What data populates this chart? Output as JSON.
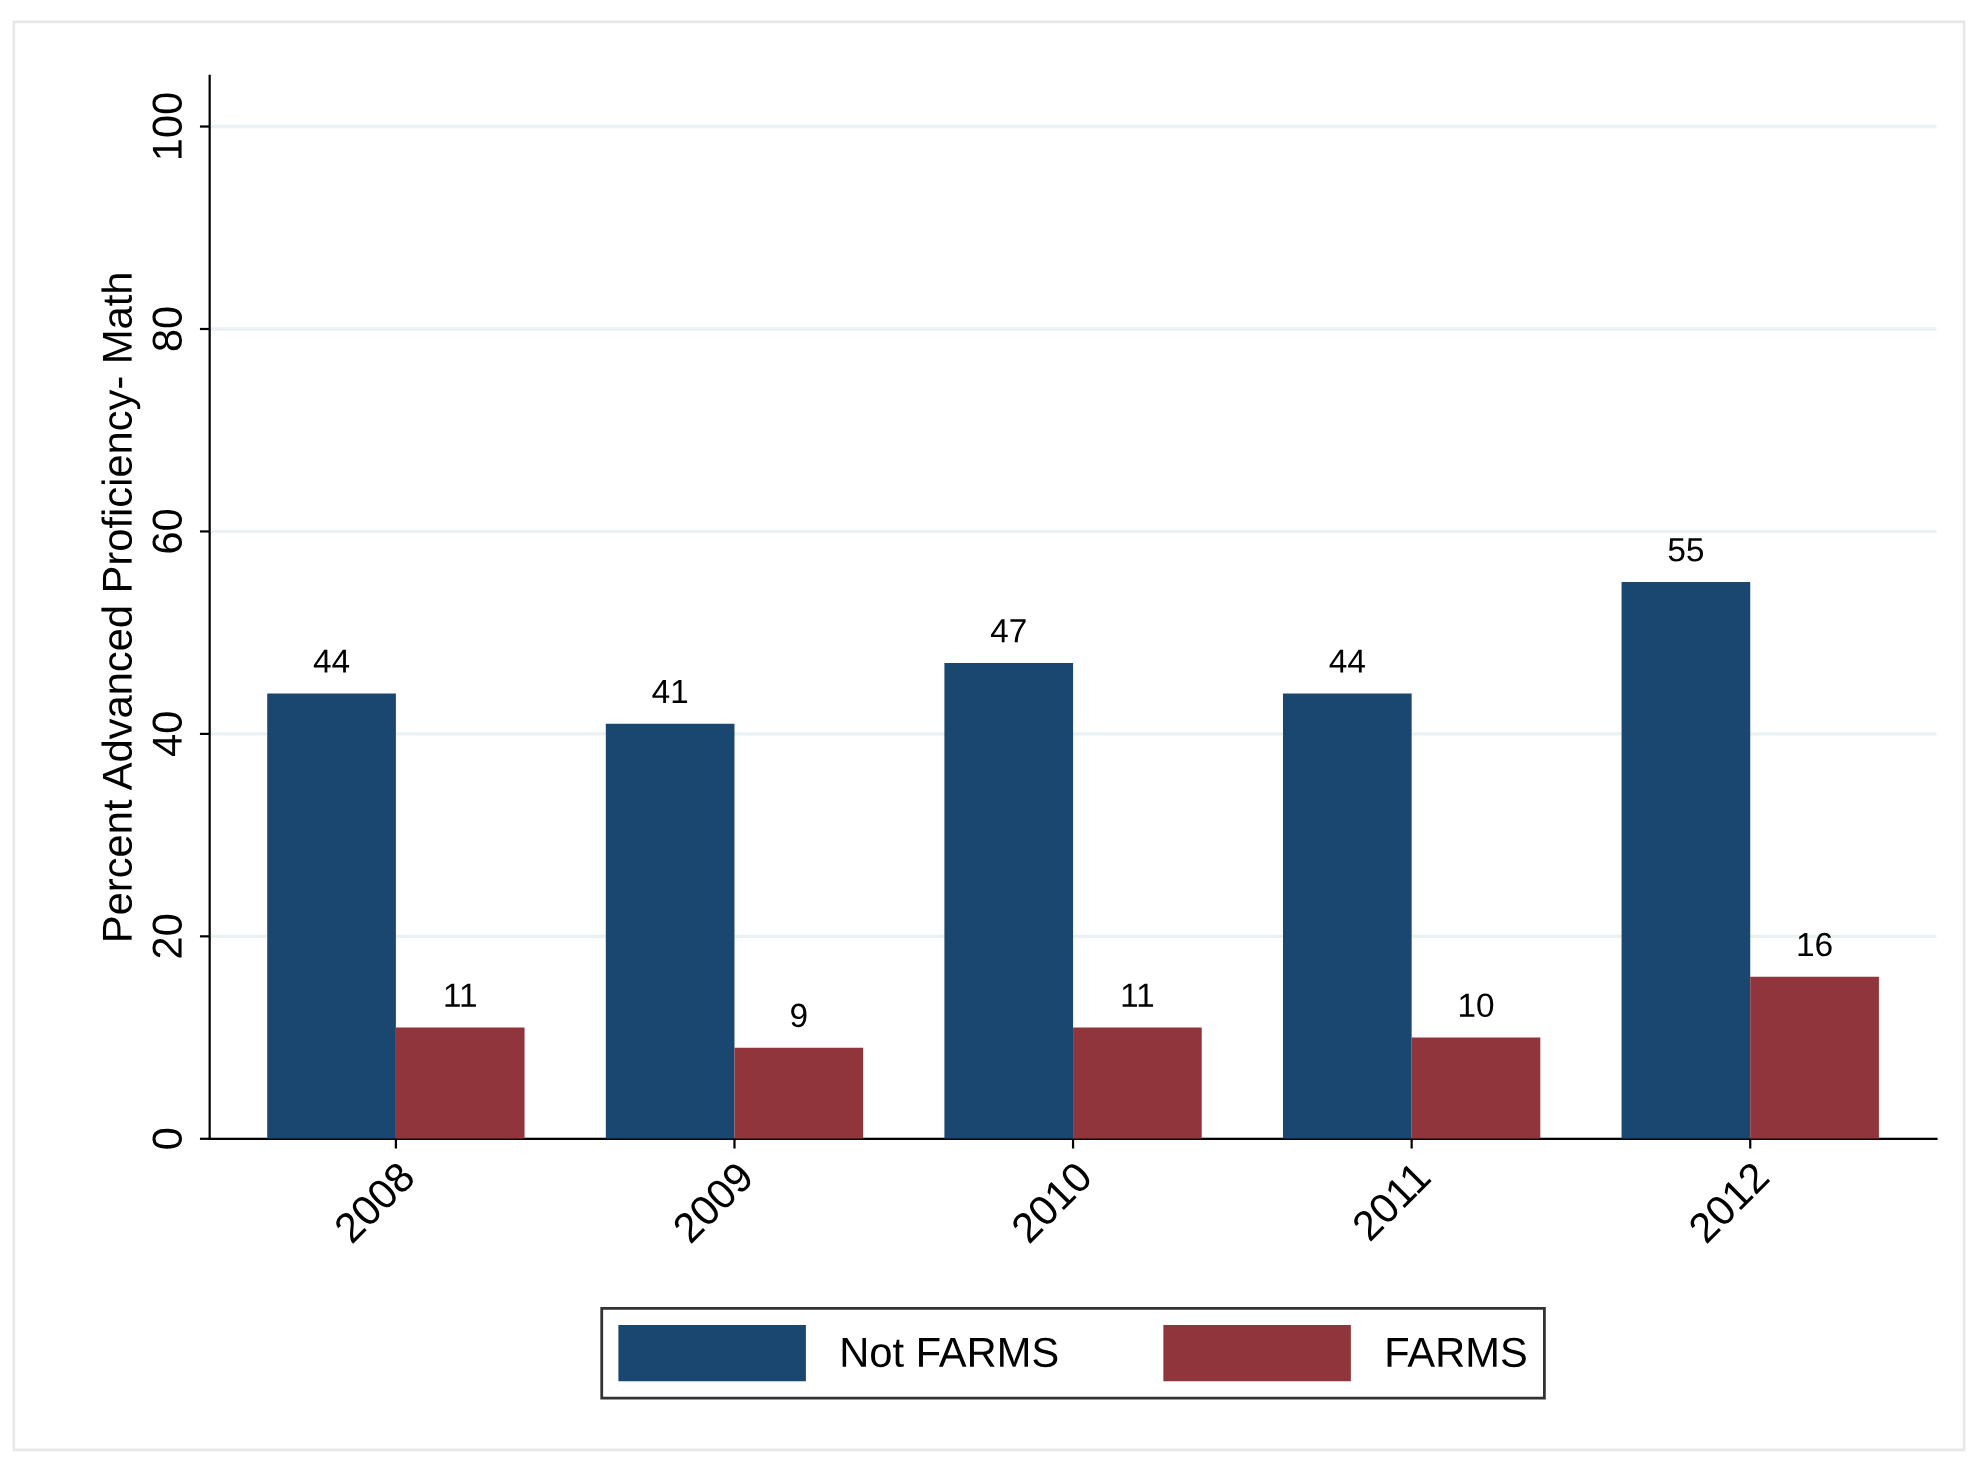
{
  "chart_data": {
    "type": "bar",
    "ylabel": "Percent Advanced Proficiency- Math",
    "categories": [
      "2008",
      "2009",
      "2010",
      "2011",
      "2012"
    ],
    "series": [
      {
        "name": "Not FARMS",
        "color": "#1a476f",
        "values": [
          44,
          41,
          47,
          44,
          55
        ]
      },
      {
        "name": "FARMS",
        "color": "#90353b",
        "values": [
          11,
          9,
          11,
          10,
          16
        ]
      }
    ],
    "ylim": [
      0,
      105
    ],
    "yticks": [
      0,
      20,
      40,
      60,
      80,
      100
    ],
    "grid": "y",
    "legend": "bottom",
    "data_labels": true
  }
}
